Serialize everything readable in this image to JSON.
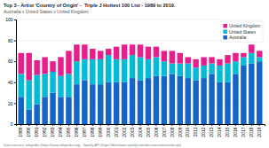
{
  "chart_data": {
    "type": "bar",
    "stacked": true,
    "title": "Top 3 - Artist 'Country of Origin' -  Triple J Hottest 100 List - 1989 to 2019.",
    "subtitle": "Australia v United States v United Kingdom",
    "annotations": [
      "Data sources: wikipedia (https://www.wikipedia.org) - Spotify API (https://developer.spotify.com/documentation/web-api)"
    ],
    "categories": [
      "1989",
      "1990",
      "1991",
      "1992",
      "1993",
      "1994",
      "1995",
      "1996",
      "1997",
      "1998",
      "1999",
      "2000",
      "2001",
      "2002",
      "2003",
      "2004",
      "2005",
      "2006",
      "2007",
      "2008",
      "2009",
      "2010",
      "2011",
      "2012",
      "2013",
      "2014",
      "2015",
      "2016",
      "2017",
      "2018",
      "2019"
    ],
    "series": [
      {
        "name": "Australia",
        "color": "#1565c8",
        "values": [
          26,
          14,
          19,
          26,
          30,
          26,
          26,
          38,
          42,
          38,
          38,
          40,
          40,
          40,
          44,
          42,
          44,
          46,
          46,
          48,
          46,
          44,
          42,
          44,
          48,
          40,
          40,
          48,
          56,
          58,
          60
        ]
      },
      {
        "name": "United States",
        "color": "#00bcd4",
        "values": [
          22,
          28,
          28,
          22,
          20,
          20,
          22,
          22,
          20,
          24,
          24,
          26,
          22,
          22,
          22,
          22,
          18,
          18,
          14,
          10,
          12,
          14,
          12,
          12,
          10,
          16,
          18,
          12,
          8,
          10,
          4
        ]
      },
      {
        "name": "United Kingdom",
        "color": "#e91e8c",
        "values": [
          20,
          26,
          14,
          16,
          10,
          18,
          22,
          16,
          14,
          10,
          8,
          6,
          12,
          14,
          10,
          12,
          12,
          10,
          10,
          12,
          10,
          6,
          8,
          8,
          6,
          6,
          8,
          8,
          4,
          8,
          6
        ]
      }
    ],
    "ylim": [
      0,
      100
    ],
    "yticks": [
      0,
      20,
      40,
      60,
      80,
      100
    ],
    "grid": true,
    "legend": "upper right"
  }
}
